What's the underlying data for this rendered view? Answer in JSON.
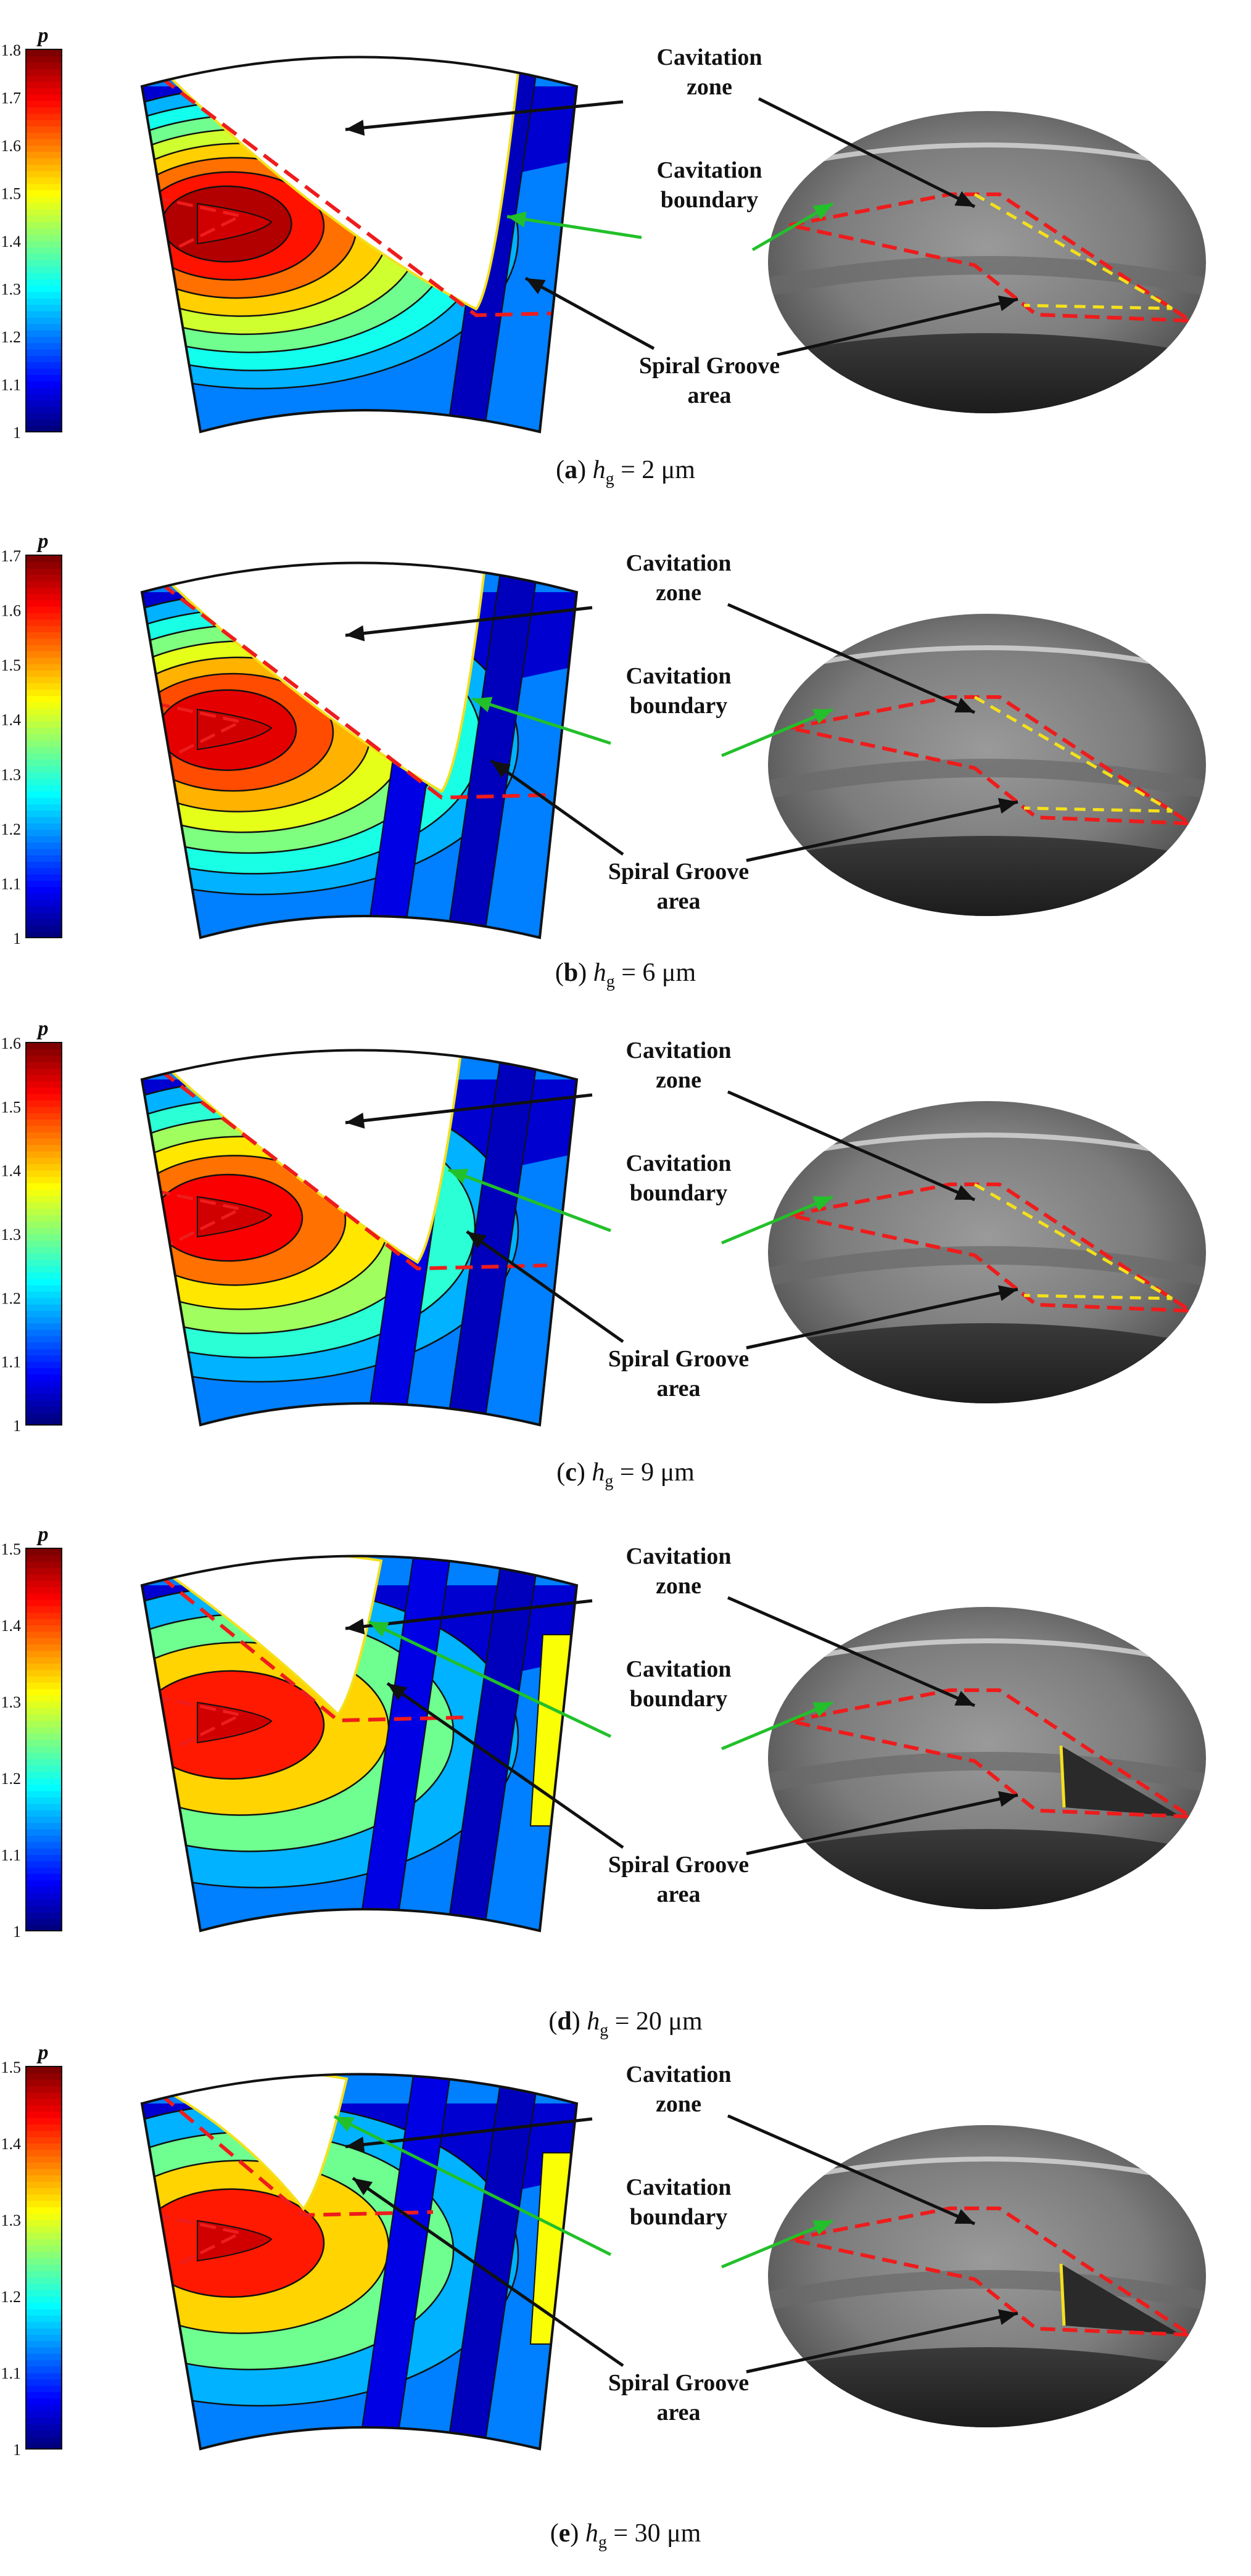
{
  "colorbar_symbol": "p",
  "labels": {
    "zone": [
      "Cavitation",
      "zone"
    ],
    "boundary": [
      "Cavitation",
      "boundary"
    ],
    "groove": [
      "Spiral Groove",
      "area"
    ]
  },
  "panels": [
    {
      "letter": "a",
      "value": "2",
      "unit": "μm",
      "ticks": [
        "1.8",
        "1.7",
        "1.6",
        "1.5",
        "1.4",
        "1.3",
        "1.2",
        "1.1",
        "1"
      ],
      "pmin": 1,
      "pmax": 1.8,
      "hot_level": 0.95,
      "level_count": 8,
      "cavity_size": 0.95,
      "groove_count": 1
    },
    {
      "letter": "b",
      "value": "6",
      "unit": "μm",
      "ticks": [
        "1.7",
        "1.6",
        "1.5",
        "1.4",
        "1.3",
        "1.2",
        "1.1",
        "1"
      ],
      "pmin": 1,
      "pmax": 1.7,
      "hot_level": 0.9,
      "level_count": 7,
      "cavity_size": 0.85,
      "groove_count": 2
    },
    {
      "letter": "c",
      "value": "9",
      "unit": "μm",
      "ticks": [
        "1.6",
        "1.5",
        "1.4",
        "1.3",
        "1.2",
        "1.1",
        "1"
      ],
      "pmin": 1,
      "pmax": 1.6,
      "hot_level": 0.88,
      "level_count": 6,
      "cavity_size": 0.78,
      "groove_count": 2
    },
    {
      "letter": "d",
      "value": "20",
      "unit": "μm",
      "ticks": [
        "1.5",
        "1.4",
        "1.3",
        "1.2",
        "1.1",
        "1"
      ],
      "pmin": 1,
      "pmax": 1.5,
      "hot_level": 0.85,
      "level_count": 4,
      "cavity_size": 0.55,
      "groove_count": 2
    },
    {
      "letter": "e",
      "value": "30",
      "unit": "μm",
      "ticks": [
        "1.5",
        "1.4",
        "1.3",
        "1.2",
        "1.1",
        "1"
      ],
      "pmin": 1,
      "pmax": 1.5,
      "hot_level": 0.85,
      "level_count": 4,
      "cavity_size": 0.45,
      "groove_count": 2
    }
  ],
  "colors": {
    "annotation_black": "#111111",
    "boundary_green": "#22c02a",
    "dashed_red": "#ee1c1c",
    "dashed_yellow": "#f4e01c",
    "cavity_fill": "#ffffff",
    "photo_base": "#8a8a8a",
    "jet": [
      "#00007f",
      "#0000ff",
      "#007fff",
      "#00ffff",
      "#7fff7f",
      "#ffff00",
      "#ff7f00",
      "#ff0000",
      "#7f0000"
    ]
  }
}
